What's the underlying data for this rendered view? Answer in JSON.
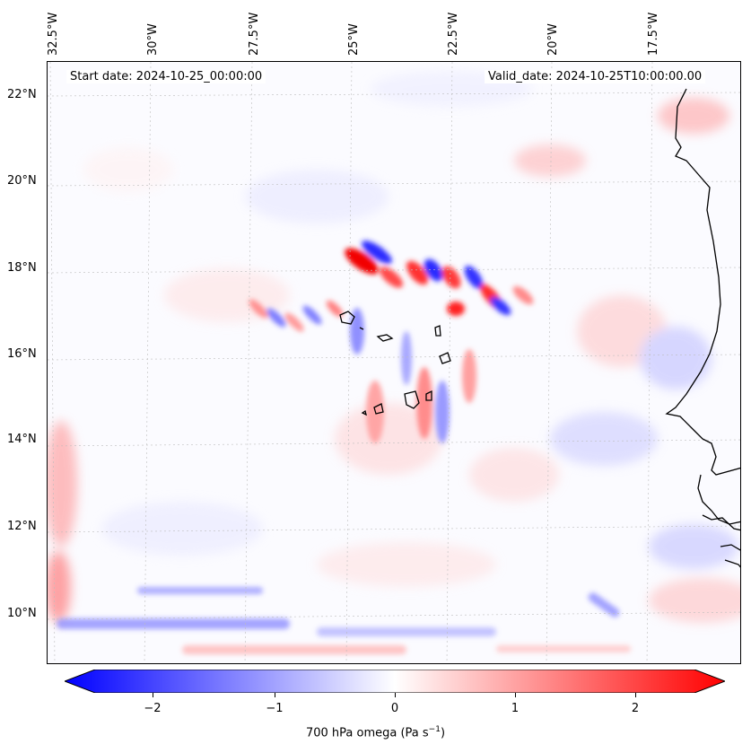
{
  "map": {
    "start_date_text": "Start date: 2024-10-25_00:00:00",
    "valid_date_text": "Valid_date: 2024-10-25T10:00:00.00",
    "lon_labels": [
      "32.5°W",
      "30°W",
      "27.5°W",
      "25°W",
      "22.5°W",
      "20°W",
      "17.5°W"
    ],
    "lat_labels": [
      "22°N",
      "20°N",
      "18°N",
      "16°N",
      "14°N",
      "12°N",
      "10°N"
    ],
    "colors": {
      "negative": "#0000ff",
      "zero": "#ffffff",
      "positive": "#ff0000",
      "coast": "#000000"
    }
  },
  "colorbar": {
    "ticks": [
      "−2",
      "−1",
      "0",
      "1",
      "2"
    ],
    "label": "700 hPa omega (Pa s",
    "label_sup": "−1",
    "label_end": ")"
  },
  "chart_data": {
    "type": "heatmap",
    "variable": "700 hPa omega",
    "units": "Pa s-1",
    "colormap": "bwr",
    "vrange": [
      -2.7,
      2.7
    ],
    "colorbar_ticks": [
      -2,
      -1,
      0,
      1,
      2
    ],
    "lon_range": [
      -33,
      -15.5
    ],
    "lat_range": [
      9,
      22.8
    ],
    "grid": true
  }
}
